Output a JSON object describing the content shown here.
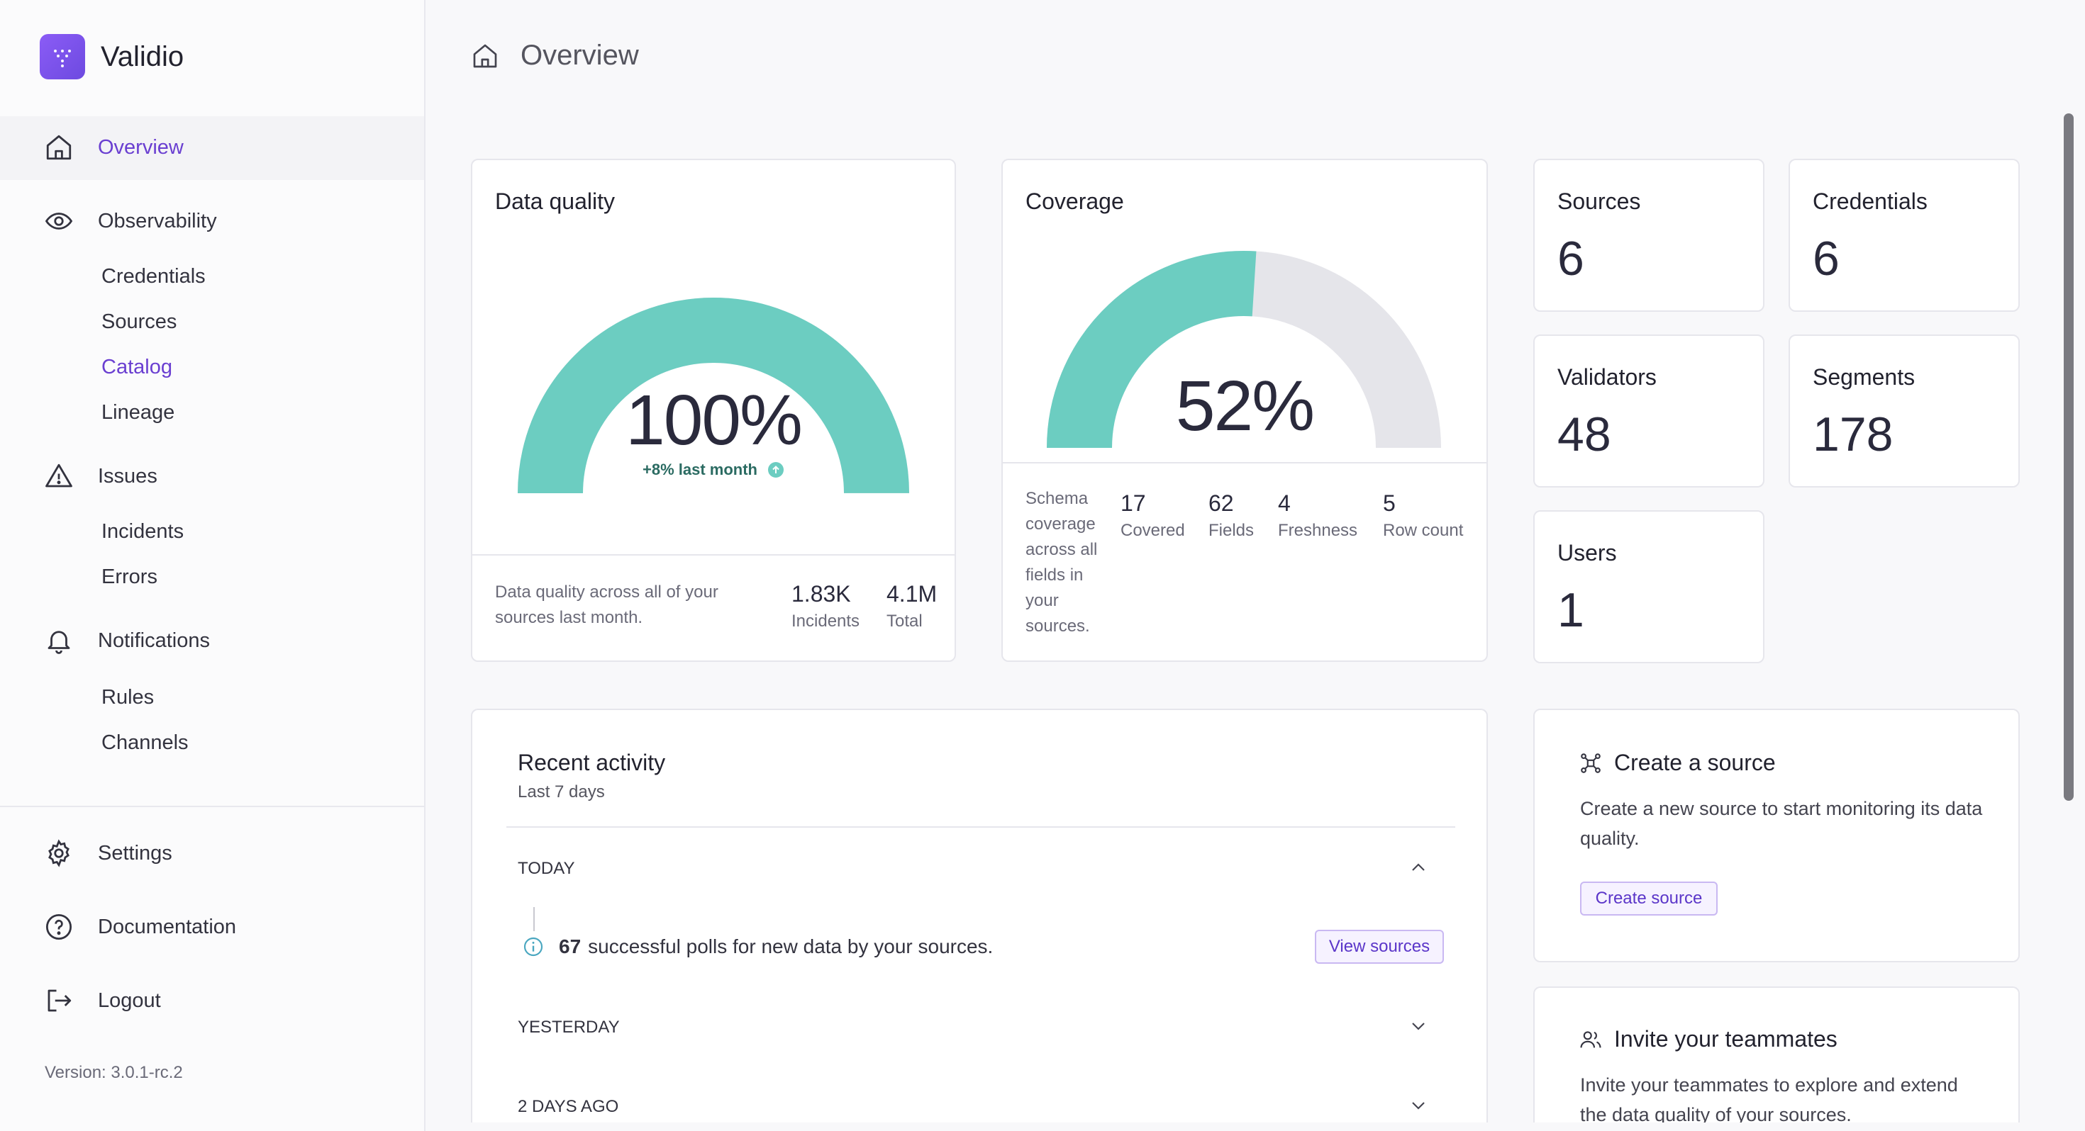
{
  "app": {
    "name": "Validio",
    "version": "Version: 3.0.1-rc.2"
  },
  "sidebar": {
    "overview": "Overview",
    "observability": "Observability",
    "observability_items": [
      "Credentials",
      "Sources",
      "Catalog",
      "Lineage"
    ],
    "issues": "Issues",
    "issues_items": [
      "Incidents",
      "Errors"
    ],
    "notifications": "Notifications",
    "notifications_items": [
      "Rules",
      "Channels"
    ],
    "settings": "Settings",
    "documentation": "Documentation",
    "logout": "Logout"
  },
  "header": {
    "title": "Overview"
  },
  "data_quality": {
    "title": "Data quality",
    "value": "100%",
    "gauge_fraction": 1.0,
    "trend": "+8% last month",
    "description": "Data quality across all of your sources last month.",
    "incidents_value": "1.83K",
    "incidents_label": "Incidents",
    "total_value": "4.1M",
    "total_label": "Total"
  },
  "coverage": {
    "title": "Coverage",
    "value": "52%",
    "gauge_fraction": 0.52,
    "description": "Schema coverage across all fields in your sources.",
    "metrics": [
      {
        "value": "17",
        "label": "Covered"
      },
      {
        "value": "62",
        "label": "Fields"
      },
      {
        "value": "4",
        "label": "Freshness"
      },
      {
        "value": "5",
        "label": "Row count"
      }
    ]
  },
  "stats": {
    "sources": {
      "label": "Sources",
      "value": "6"
    },
    "credentials": {
      "label": "Credentials",
      "value": "6"
    },
    "validators": {
      "label": "Validators",
      "value": "48"
    },
    "segments": {
      "label": "Segments",
      "value": "178"
    },
    "users": {
      "label": "Users",
      "value": "1"
    }
  },
  "recent_activity": {
    "title": "Recent activity",
    "subtitle": "Last 7 days",
    "today": "TODAY",
    "poll_count": "67",
    "poll_text": "successful polls for new data by your sources.",
    "view_sources": "View sources",
    "yesterday": "YESTERDAY",
    "two_days_ago": "2 DAYS AGO"
  },
  "create_source": {
    "title": "Create a source",
    "description": "Create a new source to start monitoring its data quality.",
    "button": "Create source"
  },
  "invite": {
    "title": "Invite your teammates",
    "description": "Invite your teammates to explore and extend the data quality of your sources."
  },
  "colors": {
    "accent": "#6a3fd1",
    "gauge": "#6ccdc1",
    "gauge_bg": "#e5e5ea"
  }
}
